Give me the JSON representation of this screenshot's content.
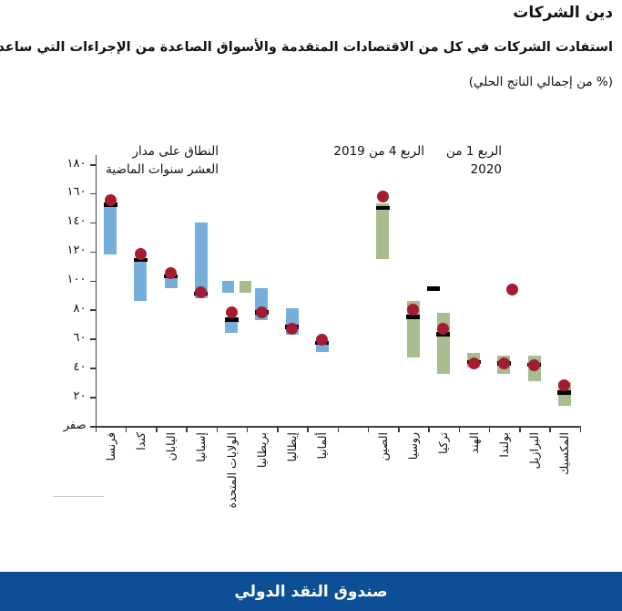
{
  "title": "دين الشركات",
  "subtitle": "استفادت الشركات في كل من الاقتصادات المتقدمة والأسواق الصاعدة من الإجراءات التي ساعدتها على الاقتراض.",
  "unit_note": "(% من إجمالي الناتج الحلي)",
  "legend": {
    "range": {
      "label_line1": "النطاق على مدار",
      "label_line2": "العشر سنوات الماضية"
    },
    "q4": {
      "label": "الربع 4 من 2019"
    },
    "q1": {
      "label_line1": "الربع 1 من",
      "label_line2": "2020"
    }
  },
  "footer": {
    "source_label": "صندوق النقد الدولي"
  },
  "chart_data": {
    "type": "range-bar",
    "title": "دين الشركات",
    "unit": "% من إجمالي الناتج الحلي",
    "ylim": [
      0,
      186
    ],
    "grid": false,
    "legend_position": "top",
    "colors": {
      "advanced": "#76afdc",
      "emerging": "#a7bd8e",
      "q4_marker": "#000000",
      "q1_marker": "#a51c30",
      "axis": "#3d3d3d",
      "footer_bg": "#0d4f96"
    },
    "series_labels": {
      "range": "النطاق على مدار العشر سنوات الماضية",
      "q4_2019": "الربع 4 من 2019",
      "q1_2020": "الربع 1 من 2020"
    },
    "yticks": [
      {
        "value": 180,
        "label": "١٨٠"
      },
      {
        "value": 160,
        "label": "١٦٠"
      },
      {
        "value": 140,
        "label": "١٤٠"
      },
      {
        "value": 120,
        "label": "١٢٠"
      },
      {
        "value": 100,
        "label": "١٠٠"
      },
      {
        "value": 80,
        "label": "٨٠"
      },
      {
        "value": 60,
        "label": "٦٠"
      },
      {
        "value": 40,
        "label": "٤٠"
      },
      {
        "value": 20,
        "label": "٢٠"
      },
      {
        "value": 0,
        "label": "صفر"
      }
    ],
    "countries": [
      {
        "label": "فرنسا",
        "group": "advanced",
        "range": [
          118,
          153
        ],
        "q4_2019": 152,
        "q1_2020": 155
      },
      {
        "label": "كندا",
        "group": "advanced",
        "range": [
          86,
          114
        ],
        "q4_2019": 114,
        "q1_2020": 118
      },
      {
        "label": "اليابان",
        "group": "advanced",
        "range": [
          95,
          104
        ],
        "q4_2019": 103,
        "q1_2020": 105
      },
      {
        "label": "إسبانيا",
        "group": "advanced",
        "range": [
          88,
          140
        ],
        "q4_2019": 91,
        "q1_2020": 92
      },
      {
        "label": "الولايات المتحدة",
        "group": "advanced",
        "range": [
          64,
          74
        ],
        "q4_2019": 73,
        "q1_2020": 78
      },
      {
        "label": "بريطانيا",
        "group": "advanced",
        "range": [
          73,
          95
        ],
        "q4_2019": 78,
        "q1_2020": 78
      },
      {
        "label": "إيطاليا",
        "group": "advanced",
        "range": [
          63,
          81
        ],
        "q4_2019": 68,
        "q1_2020": 67
      },
      {
        "label": "ألمانيا",
        "group": "advanced",
        "range": [
          51,
          58
        ],
        "q4_2019": 57,
        "q1_2020": 59
      },
      {
        "label": "الصين",
        "group": "emerging",
        "range": [
          115,
          153
        ],
        "q4_2019": 150,
        "q1_2020": 158
      },
      {
        "label": "روسيا",
        "group": "emerging",
        "range": [
          47,
          86
        ],
        "q4_2019": 75,
        "q1_2020": 80
      },
      {
        "label": "تركيا",
        "group": "emerging",
        "range": [
          36,
          78
        ],
        "q4_2019": 63,
        "q1_2020": 67
      },
      {
        "label": "الهند",
        "group": "emerging",
        "range": [
          40,
          50
        ],
        "q4_2019": 44,
        "q1_2020": 43
      },
      {
        "label": "بولندا",
        "group": "emerging",
        "range": [
          36,
          48
        ],
        "q4_2019": 43,
        "q1_2020": 43
      },
      {
        "label": "البرازيل",
        "group": "emerging",
        "range": [
          31,
          48
        ],
        "q4_2019": 42,
        "q1_2020": 42
      },
      {
        "label": "المكسيك",
        "group": "emerging",
        "range": [
          14,
          30
        ],
        "q4_2019": 23,
        "q1_2020": 28
      }
    ]
  }
}
